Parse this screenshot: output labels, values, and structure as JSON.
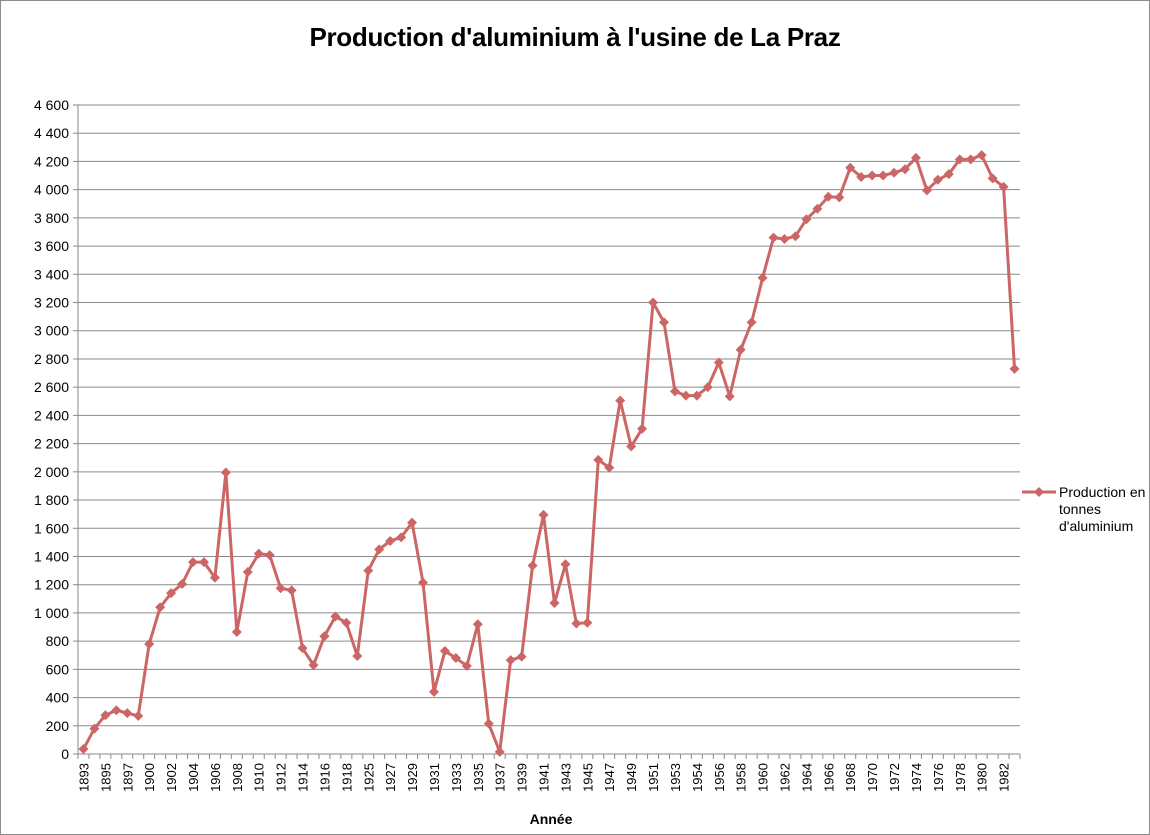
{
  "chart_data": {
    "type": "line",
    "title": "Production d'aluminium à l'usine de La Praz",
    "xlabel": "Année",
    "ylabel": "",
    "ylim": [
      0,
      4600
    ],
    "ytick_step": 200,
    "ytick_labels": [
      "0",
      "200",
      "400",
      "600",
      "800",
      "1 000",
      "1 200",
      "1 400",
      "1 600",
      "1 800",
      "2 000",
      "2 200",
      "2 400",
      "2 600",
      "2 800",
      "3 000",
      "3 200",
      "3 400",
      "3 600",
      "3 800",
      "4 000",
      "4 200",
      "4 400",
      "4 600"
    ],
    "grid": true,
    "legend_position": "right",
    "x": [
      "1893",
      "1894",
      "1895",
      "1896",
      "1897",
      "1898",
      "1900",
      "1901",
      "1902",
      "1903",
      "1904",
      "1905",
      "1906",
      "1907",
      "1908",
      "1909",
      "1910",
      "1911",
      "1912",
      "1913",
      "1914",
      "1915",
      "1916",
      "1917",
      "1918",
      "1919",
      "1925",
      "1926",
      "1927",
      "1928",
      "1929",
      "1930",
      "1931",
      "1932",
      "1933",
      "1934",
      "1935",
      "1936",
      "1937",
      "1938",
      "1939",
      "1940",
      "1941",
      "1942",
      "1943",
      "1944",
      "1945",
      "1946",
      "1947",
      "1948",
      "1949",
      "1950",
      "1951",
      "1952",
      "1953",
      "1953",
      "1954",
      "1955",
      "1956",
      "1957",
      "1958",
      "1959",
      "1960",
      "1961",
      "1962",
      "1963",
      "1964",
      "1965",
      "1966",
      "1967",
      "1968",
      "1969",
      "1970",
      "1971",
      "1972",
      "1973",
      "1974",
      "1975",
      "1976",
      "1977",
      "1978",
      "1979",
      "1980",
      "1981",
      "1982",
      "1983"
    ],
    "x_tick_labels": [
      "1893",
      "1895",
      "1897",
      "1900",
      "1902",
      "1904",
      "1906",
      "1908",
      "1910",
      "1912",
      "1914",
      "1916",
      "1918",
      "1925",
      "1927",
      "1929",
      "1931",
      "1933",
      "1935",
      "1937",
      "1939",
      "1941",
      "1943",
      "1945",
      "1947",
      "1949",
      "1951",
      "1953",
      "1954",
      "1956",
      "1958",
      "1960",
      "1962",
      "1964",
      "1966",
      "1968",
      "1970",
      "1972",
      "1974",
      "1976",
      "1978",
      "1980",
      "1982"
    ],
    "series": [
      {
        "name": "Production en tonnes d'aluminium",
        "color": "#cc6666",
        "marker": "diamond",
        "values": [
          35,
          180,
          275,
          310,
          290,
          270,
          780,
          1040,
          1140,
          1205,
          1360,
          1360,
          1250,
          1995,
          865,
          1290,
          1420,
          1410,
          1175,
          1160,
          750,
          630,
          835,
          975,
          930,
          695,
          1300,
          1450,
          1510,
          1535,
          1640,
          1215,
          440,
          730,
          680,
          625,
          920,
          215,
          15,
          665,
          690,
          1335,
          1695,
          1070,
          1345,
          925,
          930,
          2085,
          2030,
          2505,
          2180,
          2305,
          3200,
          3060,
          2570,
          2540,
          2540,
          2600,
          2775,
          2535,
          2865,
          3060,
          3375,
          3660,
          3650,
          3670,
          3790,
          3865,
          3950,
          3945,
          4155,
          4090,
          4100,
          4100,
          4120,
          4145,
          4225,
          3995,
          4070,
          4110,
          4215,
          4215,
          4245,
          4080,
          4020,
          2730
        ]
      }
    ]
  }
}
